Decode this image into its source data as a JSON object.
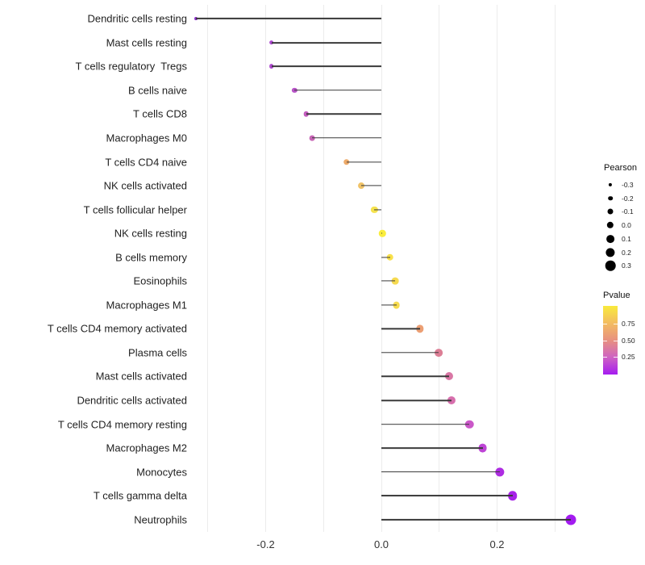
{
  "chart_data": {
    "type": "lollipop",
    "title": "",
    "xlabel": "",
    "ylabel": "",
    "xlim": [
      -0.33,
      0.345
    ],
    "grid": "vertical-only",
    "gridline_values": [
      -0.3,
      -0.2,
      -0.1,
      0.0,
      0.1,
      0.2,
      0.3
    ],
    "x_ticks": [
      {
        "value": -0.2,
        "label": "-0.2"
      },
      {
        "value": 0.0,
        "label": "0.0"
      },
      {
        "value": 0.2,
        "label": "0.2"
      }
    ],
    "categories": [
      "Dendritic cells resting",
      "Mast cells resting",
      "T cells regulatory  Tregs",
      "B cells naive",
      "T cells CD8",
      "Macrophages M0",
      "T cells CD4 naive",
      "NK cells activated",
      "T cells follicular helper",
      "NK cells resting",
      "B cells memory",
      "Eosinophils",
      "Macrophages M1",
      "T cells CD4 memory activated",
      "Plasma cells",
      "Mast cells activated",
      "Dendritic cells activated",
      "T cells CD4 memory resting",
      "Macrophages M2",
      "Monocytes",
      "T cells gamma delta",
      "Neutrophils"
    ],
    "series": [
      {
        "name": "Pearson",
        "values": [
          -0.32,
          -0.19,
          -0.19,
          -0.15,
          -0.13,
          -0.12,
          -0.06,
          -0.035,
          -0.012,
          0.002,
          0.015,
          0.024,
          0.026,
          0.067,
          0.099,
          0.117,
          0.121,
          0.152,
          0.175,
          0.205,
          0.227,
          0.328
        ]
      },
      {
        "name": "Pvalue (estimated from color)",
        "values": [
          0.13,
          0.21,
          0.21,
          0.23,
          0.26,
          0.28,
          0.68,
          0.77,
          0.88,
          0.93,
          0.87,
          0.85,
          0.85,
          0.62,
          0.48,
          0.44,
          0.42,
          0.3,
          0.25,
          0.18,
          0.15,
          0.1
        ]
      }
    ],
    "point_colors": [
      "#8B2FC9",
      "#AC4ACF",
      "#AE4BCE",
      "#B853C8",
      "#C35CBE",
      "#C765B5",
      "#EDAA69",
      "#F0C368",
      "#F5E24E",
      "#FAED3D",
      "#F8E04A",
      "#F6DA50",
      "#F6DB4F",
      "#EC9F74",
      "#DC7E95",
      "#D977A5",
      "#D76FAD",
      "#CA57C8",
      "#BE44D6",
      "#AE2CE2",
      "#A722E8",
      "#A31BF0"
    ],
    "legend_size": {
      "title": "Pearson",
      "entries": [
        {
          "label": "-0.3",
          "value": -0.3
        },
        {
          "label": "-0.2",
          "value": -0.2
        },
        {
          "label": "-0.1",
          "value": -0.1
        },
        {
          "label": "0.0",
          "value": 0.0
        },
        {
          "label": "0.1",
          "value": 0.1
        },
        {
          "label": "0.2",
          "value": 0.2
        },
        {
          "label": "0.3",
          "value": 0.3
        }
      ],
      "dot_color": "#000000",
      "position": "right"
    },
    "legend_color": {
      "title": "Pvalue",
      "tick_labels": [
        {
          "label": "0.75",
          "value": 0.75
        },
        {
          "label": "0.50",
          "value": 0.5
        },
        {
          "label": "0.25",
          "value": 0.25
        }
      ],
      "range": [
        0,
        1
      ],
      "gradient_stops": [
        {
          "pos": 0.0,
          "color": "#A51CF0"
        },
        {
          "pos": 0.25,
          "color": "#CE63C3"
        },
        {
          "pos": 0.5,
          "color": "#E89180"
        },
        {
          "pos": 0.75,
          "color": "#F3BC60"
        },
        {
          "pos": 1.0,
          "color": "#F9EA3C"
        }
      ],
      "position": "right"
    },
    "style": {
      "segment_color": "#3a3a3a",
      "gridline_color": "#ececec",
      "axis_text_color": "#333333",
      "category_text_color": "#1f1f1f",
      "background": "#ffffff"
    }
  }
}
